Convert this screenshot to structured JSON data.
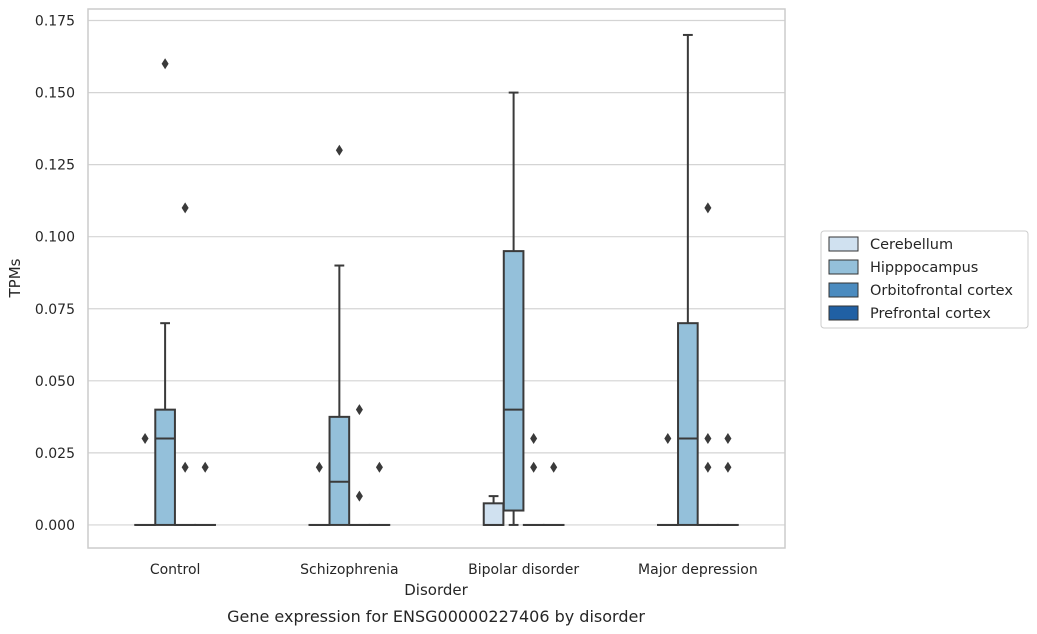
{
  "chart_data": {
    "type": "box",
    "xlabel": "Disorder",
    "ylabel": "TPMs",
    "caption": "Gene expression for ENSG00000227406 by disorder",
    "categories": [
      "Control",
      "Schizophrenia",
      "Bipolar disorder",
      "Major depression"
    ],
    "ylim": [
      -0.008,
      0.179
    ],
    "yticks": [
      "0.000",
      "0.025",
      "0.050",
      "0.075",
      "0.100",
      "0.125",
      "0.150",
      "0.175"
    ],
    "grid": "horizontal",
    "legend_position": "right",
    "series": [
      {
        "name": "Cerebellum",
        "color": "#d0e1f0",
        "boxes": [
          {
            "q1": 0,
            "median": 0,
            "q3": 0,
            "whisker_low": 0,
            "whisker_high": 0,
            "outliers": [
              0.03
            ]
          },
          {
            "q1": 0,
            "median": 0,
            "q3": 0,
            "whisker_low": 0,
            "whisker_high": 0,
            "outliers": [
              0.02
            ]
          },
          {
            "q1": 0,
            "median": 0,
            "q3": 0.0075,
            "whisker_low": 0,
            "whisker_high": 0.01,
            "outliers": []
          },
          {
            "q1": 0,
            "median": 0,
            "q3": 0,
            "whisker_low": 0,
            "whisker_high": 0,
            "outliers": [
              0.03
            ]
          }
        ]
      },
      {
        "name": "Hipppocampus",
        "color": "#94c0da",
        "boxes": [
          {
            "q1": 0,
            "median": 0.03,
            "q3": 0.04,
            "whisker_low": 0,
            "whisker_high": 0.07,
            "outliers": [
              0.16
            ]
          },
          {
            "q1": 0,
            "median": 0.015,
            "q3": 0.0375,
            "whisker_low": 0,
            "whisker_high": 0.09,
            "outliers": [
              0.13
            ]
          },
          {
            "q1": 0.005,
            "median": 0.04,
            "q3": 0.095,
            "whisker_low": 0,
            "whisker_high": 0.15,
            "outliers": []
          },
          {
            "q1": 0,
            "median": 0.03,
            "q3": 0.07,
            "whisker_low": 0,
            "whisker_high": 0.17,
            "outliers": []
          }
        ]
      },
      {
        "name": "Orbitofrontal cortex",
        "color": "#4b8bbf",
        "boxes": [
          {
            "q1": 0,
            "median": 0,
            "q3": 0,
            "whisker_low": 0,
            "whisker_high": 0,
            "outliers": [
              0.11,
              0.02
            ]
          },
          {
            "q1": 0,
            "median": 0,
            "q3": 0,
            "whisker_low": 0,
            "whisker_high": 0,
            "outliers": [
              0.04,
              0.01
            ]
          },
          {
            "q1": 0,
            "median": 0,
            "q3": 0,
            "whisker_low": 0,
            "whisker_high": 0,
            "outliers": [
              0.03,
              0.02
            ]
          },
          {
            "q1": 0,
            "median": 0,
            "q3": 0,
            "whisker_low": 0,
            "whisker_high": 0,
            "outliers": [
              0.11,
              0.03,
              0.02
            ]
          }
        ]
      },
      {
        "name": "Prefrontal cortex",
        "color": "#2060a4",
        "boxes": [
          {
            "q1": 0,
            "median": 0,
            "q3": 0,
            "whisker_low": 0,
            "whisker_high": 0,
            "outliers": [
              0.02
            ]
          },
          {
            "q1": 0,
            "median": 0,
            "q3": 0,
            "whisker_low": 0,
            "whisker_high": 0,
            "outliers": [
              0.02
            ]
          },
          {
            "q1": 0,
            "median": 0,
            "q3": 0,
            "whisker_low": 0,
            "whisker_high": 0,
            "outliers": [
              0.02
            ]
          },
          {
            "q1": 0,
            "median": 0,
            "q3": 0,
            "whisker_low": 0,
            "whisker_high": 0,
            "outliers": [
              0.03,
              0.02
            ]
          }
        ]
      }
    ]
  }
}
